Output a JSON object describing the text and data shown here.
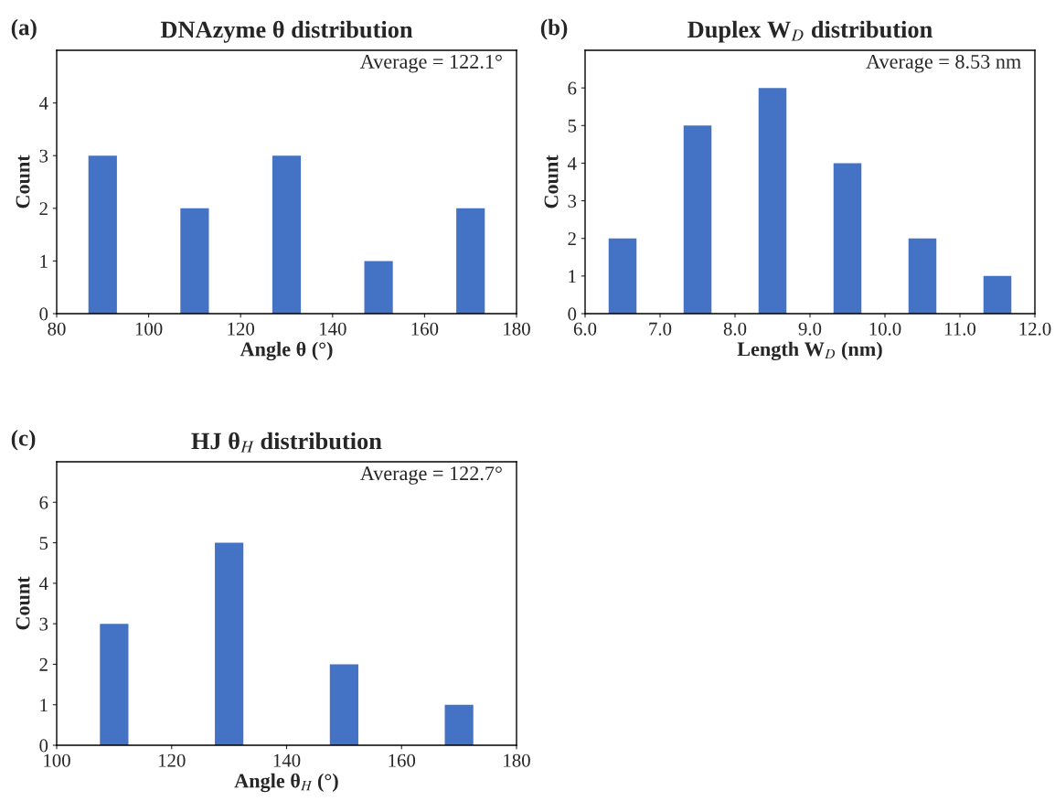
{
  "chart_data": [
    {
      "type": "bar",
      "title": "DNAzyme θ distribution",
      "xlabel": "Angle θ (°)",
      "ylabel": "Count",
      "annotations": [
        "(a)",
        "Average = 122.1°"
      ],
      "x": [
        90,
        110,
        130,
        150,
        170
      ],
      "values": [
        3,
        2,
        3,
        1,
        2
      ],
      "color": "#4472c4",
      "xlim": [
        80,
        180
      ],
      "xticks": [
        80,
        100,
        120,
        140,
        160,
        180
      ],
      "ylim": [
        0,
        5
      ],
      "yticks": [
        0,
        1,
        2,
        3,
        4
      ],
      "grid": false
    },
    {
      "type": "bar",
      "title": "Duplex W$_{D}$ distribution",
      "xlabel": "Length W$_{D}$ (nm)",
      "ylabel": "Count",
      "annotations": [
        "(b)",
        "Average = 8.53 nm"
      ],
      "x": [
        6.5,
        7.5,
        8.5,
        9.5,
        10.5,
        11.5
      ],
      "values": [
        2,
        5,
        6,
        4,
        2,
        1
      ],
      "color": "#4472c4",
      "xlim": [
        6,
        12
      ],
      "xticks": [
        {
          "value": 6,
          "label": "6.0"
        },
        {
          "value": 7,
          "label": "7.0"
        },
        {
          "value": 8,
          "label": "8.0"
        },
        {
          "value": 9,
          "label": "9.0"
        },
        {
          "value": 10,
          "label": "10.0"
        },
        {
          "value": 11,
          "label": "11.0"
        },
        {
          "value": 12,
          "label": "12.0"
        }
      ],
      "ylim": [
        0,
        7
      ],
      "yticks": [
        0,
        1,
        2,
        3,
        4,
        5,
        6
      ],
      "grid": false
    },
    {
      "type": "bar",
      "title": "HJ θ$_{H}$ distribution",
      "xlabel": "Angle θ$_{H}$ (°)",
      "ylabel": "Count",
      "annotations": [
        "(c)",
        "Average = 122.7°"
      ],
      "x": [
        110,
        130,
        150,
        170
      ],
      "values": [
        3,
        5,
        2,
        1
      ],
      "color": "#4472c4",
      "xlim": [
        100,
        180
      ],
      "xticks": [
        100,
        120,
        140,
        160,
        180
      ],
      "ylim": [
        0,
        7
      ],
      "yticks": [
        0,
        1,
        2,
        3,
        4,
        5,
        6
      ],
      "grid": false
    }
  ]
}
